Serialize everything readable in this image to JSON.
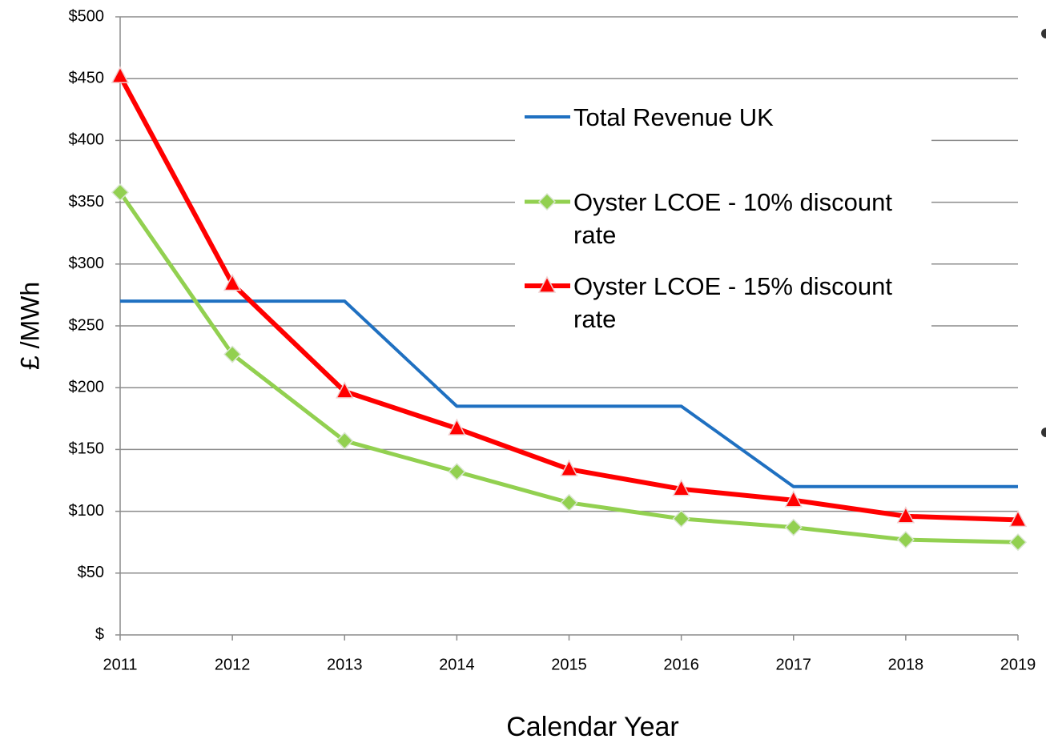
{
  "chart_data": {
    "type": "line",
    "xlabel": "Calendar Year",
    "ylabel": "£ /MWh",
    "categories": [
      "2011",
      "2012",
      "2013",
      "2014",
      "2015",
      "2016",
      "2017",
      "2018",
      "2019"
    ],
    "series": [
      {
        "name": "Total Revenue UK",
        "color": "#1f70c1",
        "marker": "none",
        "values": [
          270,
          270,
          270,
          185,
          185,
          185,
          120,
          120,
          120
        ]
      },
      {
        "name": "Oyster LCOE - 10% discount rate",
        "color": "#92d050",
        "marker": "diamond",
        "values": [
          358,
          227,
          157,
          132,
          107,
          94,
          87,
          77,
          75
        ]
      },
      {
        "name": "Oyster LCOE - 15% discount rate",
        "color": "#ff0000",
        "marker": "triangle",
        "values": [
          452,
          284,
          197,
          167,
          134,
          118,
          109,
          96,
          93
        ]
      }
    ],
    "ylim": [
      0,
      500
    ],
    "yticks": [
      {
        "value": 0,
        "label": "$"
      },
      {
        "value": 50,
        "label": "$50"
      },
      {
        "value": 100,
        "label": "$100"
      },
      {
        "value": 150,
        "label": "$150"
      },
      {
        "value": 200,
        "label": "$200"
      },
      {
        "value": 250,
        "label": "$250"
      },
      {
        "value": 300,
        "label": "$300"
      },
      {
        "value": 350,
        "label": "$350"
      },
      {
        "value": 400,
        "label": "$400"
      },
      {
        "value": 450,
        "label": "$450"
      },
      {
        "value": 500,
        "label": "$500"
      }
    ],
    "grid": true
  }
}
